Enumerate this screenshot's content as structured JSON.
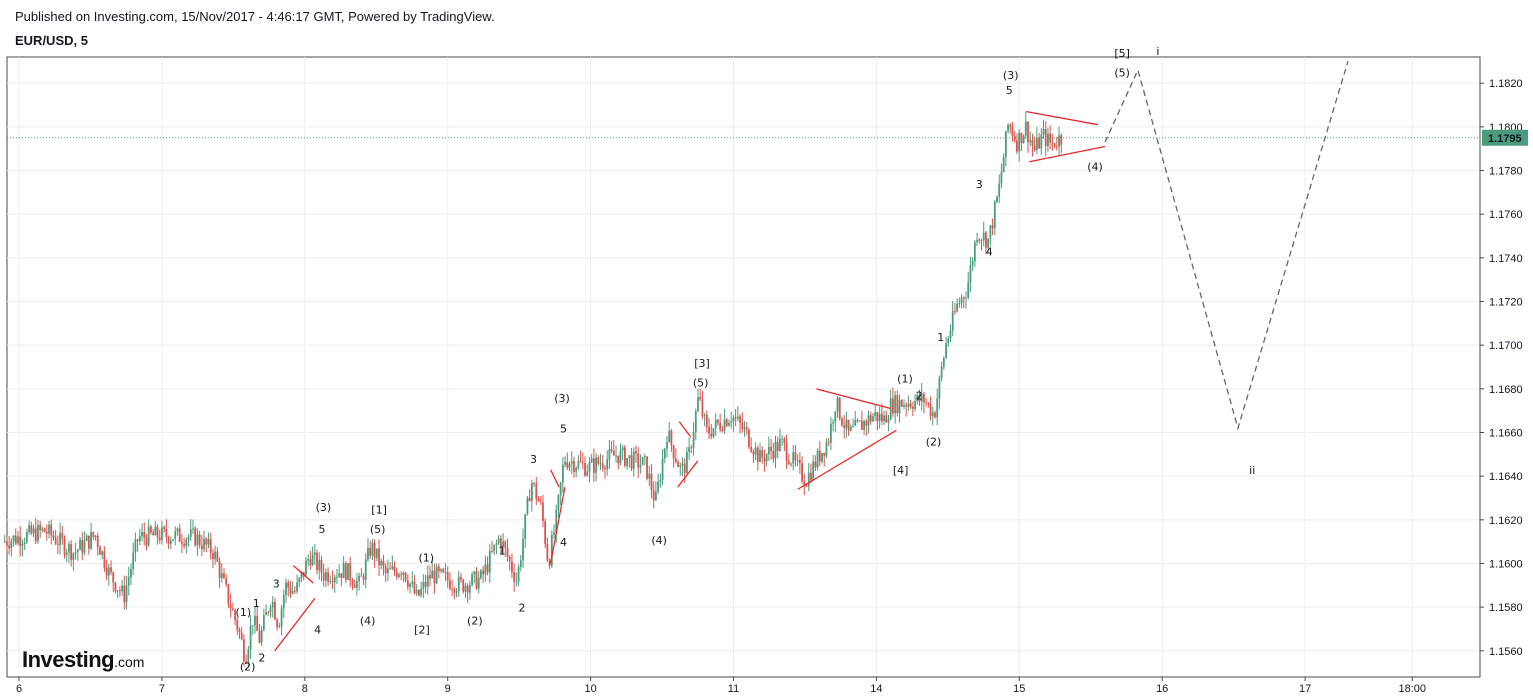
{
  "header": {
    "published": "Published on Investing.com, 15/Nov/2017 - 4:46:17 GMT, Powered by TradingView.",
    "symbol": "EUR/USD, 5"
  },
  "logo": {
    "main": "Investing",
    "suffix": ".com"
  },
  "colors": {
    "up": "#4a9c7c",
    "down": "#d9534f",
    "trendline": "#e8282b",
    "projection": "#666666",
    "price_line": "#4a9c7c",
    "grid": "#eeeeee"
  },
  "chart_data": {
    "type": "candlestick",
    "title": "EUR/USD, 5",
    "x_ticks": [
      {
        "label": "6",
        "day": 6
      },
      {
        "label": "7",
        "day": 7
      },
      {
        "label": "8",
        "day": 8
      },
      {
        "label": "9",
        "day": 9
      },
      {
        "label": "10",
        "day": 10
      },
      {
        "label": "11",
        "day": 11
      },
      {
        "label": "14",
        "day": 12
      },
      {
        "label": "15",
        "day": 13
      },
      {
        "label": "16",
        "day": 14
      },
      {
        "label": "17",
        "day": 15
      },
      {
        "label": "18:00",
        "day": 15.75
      }
    ],
    "y_ticks": [
      "1.1560",
      "1.1580",
      "1.1600",
      "1.1620",
      "1.1640",
      "1.1660",
      "1.1680",
      "1.1700",
      "1.1720",
      "1.1740",
      "1.1760",
      "1.1780",
      "1.1800",
      "1.1820"
    ],
    "ylim": [
      1.1548,
      1.1832
    ],
    "last_price": 1.1795,
    "last_price_label": "1.1795",
    "price_path": [
      [
        5.9,
        1.161
      ],
      [
        6.2,
        1.1615
      ],
      [
        6.4,
        1.1605
      ],
      [
        6.55,
        1.1613
      ],
      [
        6.65,
        1.1595
      ],
      [
        6.75,
        1.1585
      ],
      [
        6.85,
        1.1612
      ],
      [
        7.0,
        1.1613
      ],
      [
        7.25,
        1.1612
      ],
      [
        7.38,
        1.1605
      ],
      [
        7.45,
        1.159
      ],
      [
        7.55,
        1.157
      ],
      [
        7.6,
        1.1557
      ],
      [
        7.65,
        1.1575
      ],
      [
        7.7,
        1.1565
      ],
      [
        7.78,
        1.1585
      ],
      [
        7.83,
        1.1572
      ],
      [
        7.88,
        1.159
      ],
      [
        7.95,
        1.1587
      ],
      [
        8.0,
        1.1595
      ],
      [
        8.05,
        1.1604
      ],
      [
        8.15,
        1.1595
      ],
      [
        8.3,
        1.1597
      ],
      [
        8.4,
        1.159
      ],
      [
        8.48,
        1.1608
      ],
      [
        8.58,
        1.1595
      ],
      [
        8.7,
        1.1598
      ],
      [
        8.8,
        1.1584
      ],
      [
        8.9,
        1.1595
      ],
      [
        9.0,
        1.1593
      ],
      [
        9.1,
        1.159
      ],
      [
        9.25,
        1.1593
      ],
      [
        9.38,
        1.1612
      ],
      [
        9.5,
        1.1592
      ],
      [
        9.6,
        1.1638
      ],
      [
        9.67,
        1.1625
      ],
      [
        9.72,
        1.16
      ],
      [
        9.78,
        1.1622
      ],
      [
        9.83,
        1.1648
      ],
      [
        10.0,
        1.1644
      ],
      [
        10.2,
        1.165
      ],
      [
        10.4,
        1.1645
      ],
      [
        10.47,
        1.1628
      ],
      [
        10.55,
        1.166
      ],
      [
        10.65,
        1.1642
      ],
      [
        10.7,
        1.1648
      ],
      [
        10.77,
        1.1676
      ],
      [
        10.83,
        1.166
      ],
      [
        11.0,
        1.1668
      ],
      [
        11.1,
        1.166
      ],
      [
        11.2,
        1.1648
      ],
      [
        11.35,
        1.1655
      ],
      [
        11.48,
        1.1642
      ],
      [
        11.52,
        1.1638
      ],
      [
        11.68,
        1.1657
      ],
      [
        11.73,
        1.1674
      ],
      [
        11.82,
        1.1659
      ],
      [
        12.0,
        1.1668
      ],
      [
        12.07,
        1.1666
      ],
      [
        12.12,
        1.1673
      ],
      [
        12.35,
        1.1675
      ],
      [
        12.42,
        1.1668
      ],
      [
        12.5,
        1.17
      ],
      [
        12.58,
        1.1718
      ],
      [
        12.65,
        1.1726
      ],
      [
        12.72,
        1.1752
      ],
      [
        12.8,
        1.1748
      ],
      [
        12.87,
        1.177
      ],
      [
        12.94,
        1.1802
      ],
      [
        13.0,
        1.1793
      ],
      [
        13.06,
        1.18
      ],
      [
        13.12,
        1.1789
      ],
      [
        13.18,
        1.1796
      ],
      [
        13.24,
        1.1792
      ],
      [
        13.3,
        1.1795
      ]
    ],
    "projection_path": [
      [
        13.6,
        1.1793
      ],
      [
        13.83,
        1.1826
      ],
      [
        14.53,
        1.1662
      ],
      [
        15.3,
        1.183
      ]
    ],
    "trendlines": [
      [
        [
          7.79,
          1.156
        ],
        [
          8.07,
          1.1584
        ]
      ],
      [
        [
          7.92,
          1.1599
        ],
        [
          8.06,
          1.1591
        ]
      ],
      [
        [
          9.72,
          1.16
        ],
        [
          9.82,
          1.1635
        ]
      ],
      [
        [
          9.72,
          1.1643
        ],
        [
          9.78,
          1.1635
        ]
      ],
      [
        [
          10.61,
          1.1635
        ],
        [
          10.75,
          1.1647
        ]
      ],
      [
        [
          10.62,
          1.1665
        ],
        [
          10.7,
          1.1658
        ]
      ],
      [
        [
          11.45,
          1.1634
        ],
        [
          12.14,
          1.1661
        ]
      ],
      [
        [
          11.58,
          1.168
        ],
        [
          12.1,
          1.1671
        ]
      ],
      [
        [
          13.07,
          1.1784
        ],
        [
          13.6,
          1.1791
        ]
      ],
      [
        [
          13.05,
          1.1807
        ],
        [
          13.55,
          1.1801
        ]
      ]
    ],
    "wave_labels": [
      {
        "text": "(1)",
        "x": 7.57,
        "y": 1.1576
      },
      {
        "text": "1",
        "x": 7.66,
        "y": 1.158
      },
      {
        "text": "3",
        "x": 7.8,
        "y": 1.1589
      },
      {
        "text": "(2)",
        "x": 7.6,
        "y": 1.1551
      },
      {
        "text": "2",
        "x": 7.7,
        "y": 1.1555
      },
      {
        "text": "4",
        "x": 8.09,
        "y": 1.1568
      },
      {
        "text": "(3)",
        "x": 8.13,
        "y": 1.1624
      },
      {
        "text": "5",
        "x": 8.12,
        "y": 1.1614
      },
      {
        "text": "[1]",
        "x": 8.52,
        "y": 1.1623
      },
      {
        "text": "(5)",
        "x": 8.51,
        "y": 1.1614
      },
      {
        "text": "(4)",
        "x": 8.44,
        "y": 1.1572
      },
      {
        "text": "[2]",
        "x": 8.82,
        "y": 1.1568
      },
      {
        "text": "(1)",
        "x": 8.85,
        "y": 1.1601
      },
      {
        "text": "(2)",
        "x": 9.19,
        "y": 1.1572
      },
      {
        "text": "1",
        "x": 9.38,
        "y": 1.1604
      },
      {
        "text": "2",
        "x": 9.52,
        "y": 1.1578
      },
      {
        "text": "3",
        "x": 9.6,
        "y": 1.1646
      },
      {
        "text": "(3)",
        "x": 9.8,
        "y": 1.1674
      },
      {
        "text": "5",
        "x": 9.81,
        "y": 1.166
      },
      {
        "text": "4",
        "x": 9.81,
        "y": 1.1608
      },
      {
        "text": "[3]",
        "x": 10.78,
        "y": 1.169
      },
      {
        "text": "(5)",
        "x": 10.77,
        "y": 1.1681
      },
      {
        "text": "(4)",
        "x": 10.48,
        "y": 1.1609
      },
      {
        "text": "(1)",
        "x": 12.2,
        "y": 1.1683
      },
      {
        "text": "2",
        "x": 12.3,
        "y": 1.1675
      },
      {
        "text": "[4]",
        "x": 12.17,
        "y": 1.1641
      },
      {
        "text": "(2)",
        "x": 12.4,
        "y": 1.1654
      },
      {
        "text": "1",
        "x": 12.45,
        "y": 1.1702
      },
      {
        "text": "3",
        "x": 12.72,
        "y": 1.1772
      },
      {
        "text": "4",
        "x": 12.79,
        "y": 1.1741
      },
      {
        "text": "(3)",
        "x": 12.94,
        "y": 1.1822
      },
      {
        "text": "5",
        "x": 12.93,
        "y": 1.1815
      },
      {
        "text": "(4)",
        "x": 13.53,
        "y": 1.178
      },
      {
        "text": "(5)",
        "x": 13.72,
        "y": 1.1823
      },
      {
        "text": "[5]",
        "x": 13.72,
        "y": 1.1832
      },
      {
        "text": "i",
        "x": 13.97,
        "y": 1.1833
      },
      {
        "text": "ii",
        "x": 14.63,
        "y": 1.1641
      }
    ]
  }
}
